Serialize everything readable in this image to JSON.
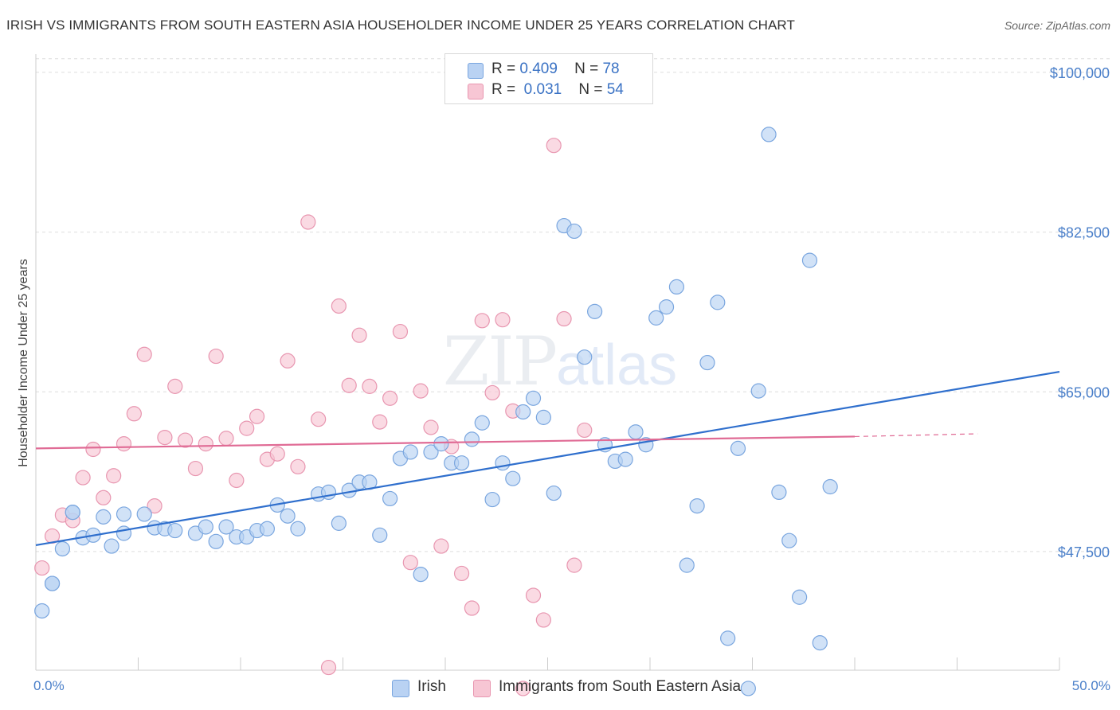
{
  "header": {
    "title": "IRISH VS IMMIGRANTS FROM SOUTH EASTERN ASIA HOUSEHOLDER INCOME UNDER 25 YEARS CORRELATION CHART",
    "source": "Source: ZipAtlas.com"
  },
  "watermark": {
    "zip": "ZIP",
    "atlas": "atlas"
  },
  "legend_top": {
    "irish": {
      "r_label": "R =",
      "r_value": "0.409",
      "n_label": "N =",
      "n_value": "78"
    },
    "sea": {
      "r_label": "R =",
      "r_value": "0.031",
      "n_label": "N =",
      "n_value": "54"
    }
  },
  "legend_bottom": {
    "irish": "Irish",
    "sea": "Immigrants from South Eastern Asia"
  },
  "colors": {
    "irish_fill": "#b9d2f3",
    "irish_stroke": "#7aa6df",
    "irish_line": "#2f6fcd",
    "sea_fill": "#f7c6d4",
    "sea_stroke": "#e896b0",
    "sea_line": "#e06b95",
    "axis_text": "#4a7fc9",
    "grid": "#dddddd"
  },
  "chart_data": {
    "type": "scatter",
    "title": "IRISH VS IMMIGRANTS FROM SOUTH EASTERN ASIA HOUSEHOLDER INCOME UNDER 25 YEARS CORRELATION CHART",
    "xlabel": "",
    "ylabel": "Householder Income Under 25 years",
    "xlim": [
      0,
      50
    ],
    "ylim": [
      34500,
      102000
    ],
    "x_tick_labels": [
      "0.0%",
      "50.0%"
    ],
    "y_ticks": [
      47500,
      65000,
      82500,
      100000
    ],
    "y_tick_labels": [
      "$47,500",
      "$65,000",
      "$82,500",
      "$100,000"
    ],
    "grid": true,
    "legend_placement": "top-center",
    "series": [
      {
        "name": "Irish",
        "R": 0.409,
        "N": 78,
        "trend": {
          "x": [
            0,
            50
          ],
          "y": [
            48200,
            67200
          ]
        },
        "points": [
          [
            0.3,
            41.0,
            39800
          ],
          [
            0.8,
            44.0,
            39800
          ],
          [
            1.3,
            47.8,
            39600
          ],
          [
            1.8,
            51.8,
            39600
          ],
          [
            2.3,
            49.0,
            39400
          ],
          [
            2.8,
            49.3,
            39400
          ],
          [
            3.3,
            51.3,
            39600
          ],
          [
            3.7,
            48.1,
            39800
          ],
          [
            4.3,
            49.5,
            39600
          ],
          [
            4.3,
            51.6,
            39800
          ],
          [
            5.3,
            51.6,
            39600
          ],
          [
            5.8,
            50.1,
            39600
          ],
          [
            6.3,
            50.0,
            39600
          ],
          [
            6.8,
            49.8,
            39600
          ],
          [
            7.8,
            49.5,
            39800
          ],
          [
            8.3,
            50.2,
            39800
          ],
          [
            8.8,
            48.6,
            39800
          ],
          [
            9.3,
            50.2,
            39600
          ],
          [
            9.8,
            49.1,
            39800
          ],
          [
            10.3,
            49.1,
            39600
          ],
          [
            10.8,
            49.8,
            39600
          ],
          [
            11.3,
            50.0,
            39400
          ],
          [
            11.8,
            52.6,
            39400
          ],
          [
            12.3,
            51.4,
            39600
          ],
          [
            12.8,
            50.0,
            39400
          ],
          [
            13.8,
            53.8,
            39400
          ],
          [
            14.3,
            54.0,
            39400
          ],
          [
            14.8,
            50.6,
            39400
          ],
          [
            15.3,
            54.2,
            39400
          ],
          [
            15.8,
            55.1,
            39400
          ],
          [
            16.3,
            55.1,
            39400
          ],
          [
            16.8,
            49.3,
            39400
          ],
          [
            17.3,
            53.3,
            39400
          ],
          [
            17.8,
            57.7,
            39400
          ],
          [
            18.3,
            58.4,
            39400
          ],
          [
            18.8,
            45.0,
            39400
          ],
          [
            19.3,
            58.4,
            39400
          ],
          [
            19.8,
            59.3,
            39400
          ],
          [
            20.3,
            57.2,
            39400
          ],
          [
            20.8,
            57.2,
            39400
          ],
          [
            21.3,
            59.8,
            39400
          ],
          [
            21.8,
            61.6,
            39400
          ],
          [
            22.3,
            53.2,
            39400
          ],
          [
            22.8,
            57.2,
            39400
          ],
          [
            23.3,
            55.5,
            39400
          ],
          [
            23.8,
            62.8,
            39400
          ],
          [
            24.3,
            64.3,
            39400
          ],
          [
            24.8,
            62.2,
            39400
          ],
          [
            25.3,
            53.9,
            39400
          ],
          [
            25.8,
            83.2,
            39400
          ],
          [
            26.3,
            82.6,
            39400
          ],
          [
            26.8,
            68.8,
            39400
          ],
          [
            27.3,
            73.8,
            39400
          ],
          [
            27.8,
            59.2,
            39400
          ],
          [
            28.3,
            57.4,
            39400
          ],
          [
            28.8,
            57.6,
            39400
          ],
          [
            29.3,
            60.6,
            39400
          ],
          [
            29.8,
            59.2,
            39400
          ],
          [
            30.3,
            73.1,
            39400
          ],
          [
            30.8,
            74.3,
            39400
          ],
          [
            31.3,
            76.5,
            39400
          ],
          [
            31.8,
            46.0,
            39400
          ],
          [
            32.3,
            52.5,
            39400
          ],
          [
            32.8,
            68.2,
            39400
          ],
          [
            33.3,
            74.8,
            39400
          ],
          [
            33.8,
            38.0,
            39400
          ],
          [
            34.3,
            58.8,
            39400
          ],
          [
            34.8,
            32.5,
            39400
          ],
          [
            35.3,
            65.1,
            39400
          ],
          [
            35.8,
            93.2,
            39400
          ],
          [
            36.3,
            54.0,
            39400
          ],
          [
            36.8,
            48.7,
            39400
          ],
          [
            37.3,
            42.5,
            39400
          ],
          [
            37.8,
            79.4,
            39400
          ],
          [
            38.3,
            37.5,
            39400
          ],
          [
            38.8,
            54.6,
            39400
          ],
          [
            0.8,
            44.0,
            39800
          ],
          [
            1.8,
            51.8,
            39600
          ]
        ]
      },
      {
        "name": "Immigrants from South Eastern Asia",
        "R": 0.031,
        "N": 54,
        "trend": {
          "x": [
            0,
            40
          ],
          "y": [
            58800,
            60100
          ]
        },
        "trend_dashed_to": {
          "x": [
            40,
            46
          ],
          "y": [
            60100,
            60400
          ]
        },
        "points": [
          [
            0.3,
            45.7,
            38000
          ],
          [
            0.8,
            49.2,
            38000
          ],
          [
            1.3,
            51.5,
            38000
          ],
          [
            1.8,
            50.9,
            38000
          ],
          [
            2.3,
            55.6,
            38000
          ],
          [
            2.8,
            58.7,
            38000
          ],
          [
            3.3,
            53.4,
            38000
          ],
          [
            3.8,
            55.8,
            38000
          ],
          [
            4.3,
            59.3,
            38000
          ],
          [
            4.8,
            62.6,
            38000
          ],
          [
            5.3,
            69.1,
            38000
          ],
          [
            5.8,
            52.5,
            38000
          ],
          [
            6.3,
            60.0,
            38000
          ],
          [
            6.8,
            65.6,
            38000
          ],
          [
            7.3,
            59.7,
            38000
          ],
          [
            7.8,
            56.6,
            38000
          ],
          [
            8.3,
            59.3,
            38000
          ],
          [
            8.8,
            68.9,
            38000
          ],
          [
            9.3,
            59.9,
            38000
          ],
          [
            9.8,
            55.3,
            38000
          ],
          [
            10.3,
            61.0,
            38000
          ],
          [
            10.8,
            62.3,
            38000
          ],
          [
            11.3,
            57.6,
            38000
          ],
          [
            11.8,
            58.2,
            38000
          ],
          [
            12.3,
            68.4,
            38000
          ],
          [
            12.8,
            56.8,
            38000
          ],
          [
            13.3,
            83.6,
            38000
          ],
          [
            13.8,
            62.0,
            38000
          ],
          [
            14.3,
            34.8,
            38000
          ],
          [
            14.8,
            74.4,
            38000
          ],
          [
            15.3,
            65.7,
            38000
          ],
          [
            15.8,
            71.2,
            38000
          ],
          [
            16.3,
            65.6,
            38000
          ],
          [
            16.8,
            61.7,
            38000
          ],
          [
            17.3,
            64.3,
            38000
          ],
          [
            17.8,
            71.6,
            38000
          ],
          [
            18.3,
            46.3,
            38000
          ],
          [
            18.8,
            65.1,
            38000
          ],
          [
            19.3,
            61.1,
            38000
          ],
          [
            19.8,
            48.1,
            38000
          ],
          [
            20.3,
            59.0,
            38000
          ],
          [
            20.8,
            45.1,
            38000
          ],
          [
            21.3,
            41.3,
            38000
          ],
          [
            21.8,
            72.8,
            38000
          ],
          [
            22.3,
            64.9,
            38000
          ],
          [
            22.8,
            72.9,
            38000
          ],
          [
            23.3,
            62.9,
            38000
          ],
          [
            23.8,
            32.5,
            38000
          ],
          [
            24.3,
            42.7,
            38000
          ],
          [
            24.8,
            40.0,
            38000
          ],
          [
            25.3,
            92.0,
            38000
          ],
          [
            25.8,
            73.0,
            38000
          ],
          [
            26.3,
            46.0,
            38000
          ],
          [
            26.8,
            60.8,
            38000
          ]
        ]
      }
    ]
  }
}
